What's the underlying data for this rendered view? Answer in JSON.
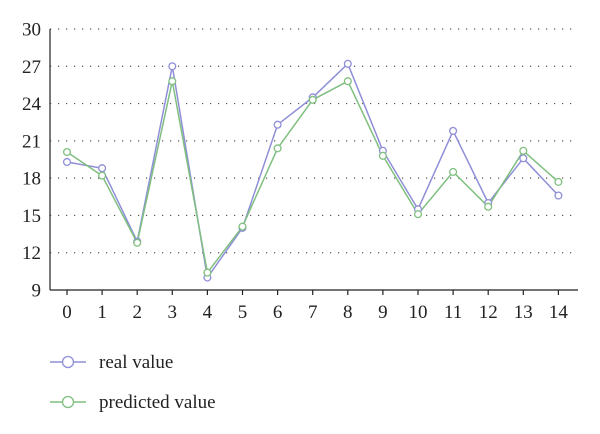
{
  "chart_data": {
    "type": "line",
    "x": [
      0,
      1,
      2,
      3,
      4,
      5,
      6,
      7,
      8,
      9,
      10,
      11,
      12,
      13,
      14
    ],
    "x_ticks": [
      "0",
      "1",
      "2",
      "3",
      "4",
      "5",
      "6",
      "7",
      "8",
      "9",
      "10",
      "11",
      "12",
      "13",
      "14"
    ],
    "y_ticks": [
      "9",
      "12",
      "15",
      "18",
      "21",
      "24",
      "27",
      "30"
    ],
    "ylim": [
      9,
      30
    ],
    "xlim": [
      0,
      14
    ],
    "grid": "horizontal-dotted",
    "legend_position": "bottom-left",
    "series": [
      {
        "name": "real value",
        "color": "#8f8fd8",
        "values": [
          19.3,
          18.8,
          12.9,
          27.0,
          10.0,
          14.0,
          22.3,
          24.5,
          27.2,
          20.2,
          15.5,
          21.8,
          16.0,
          19.6,
          16.6
        ]
      },
      {
        "name": "predicted value",
        "color": "#7fbf7f",
        "values": [
          20.1,
          18.2,
          12.8,
          25.8,
          10.4,
          14.1,
          20.4,
          24.3,
          25.8,
          19.8,
          15.1,
          18.5,
          15.7,
          20.2,
          17.7
        ]
      }
    ]
  }
}
